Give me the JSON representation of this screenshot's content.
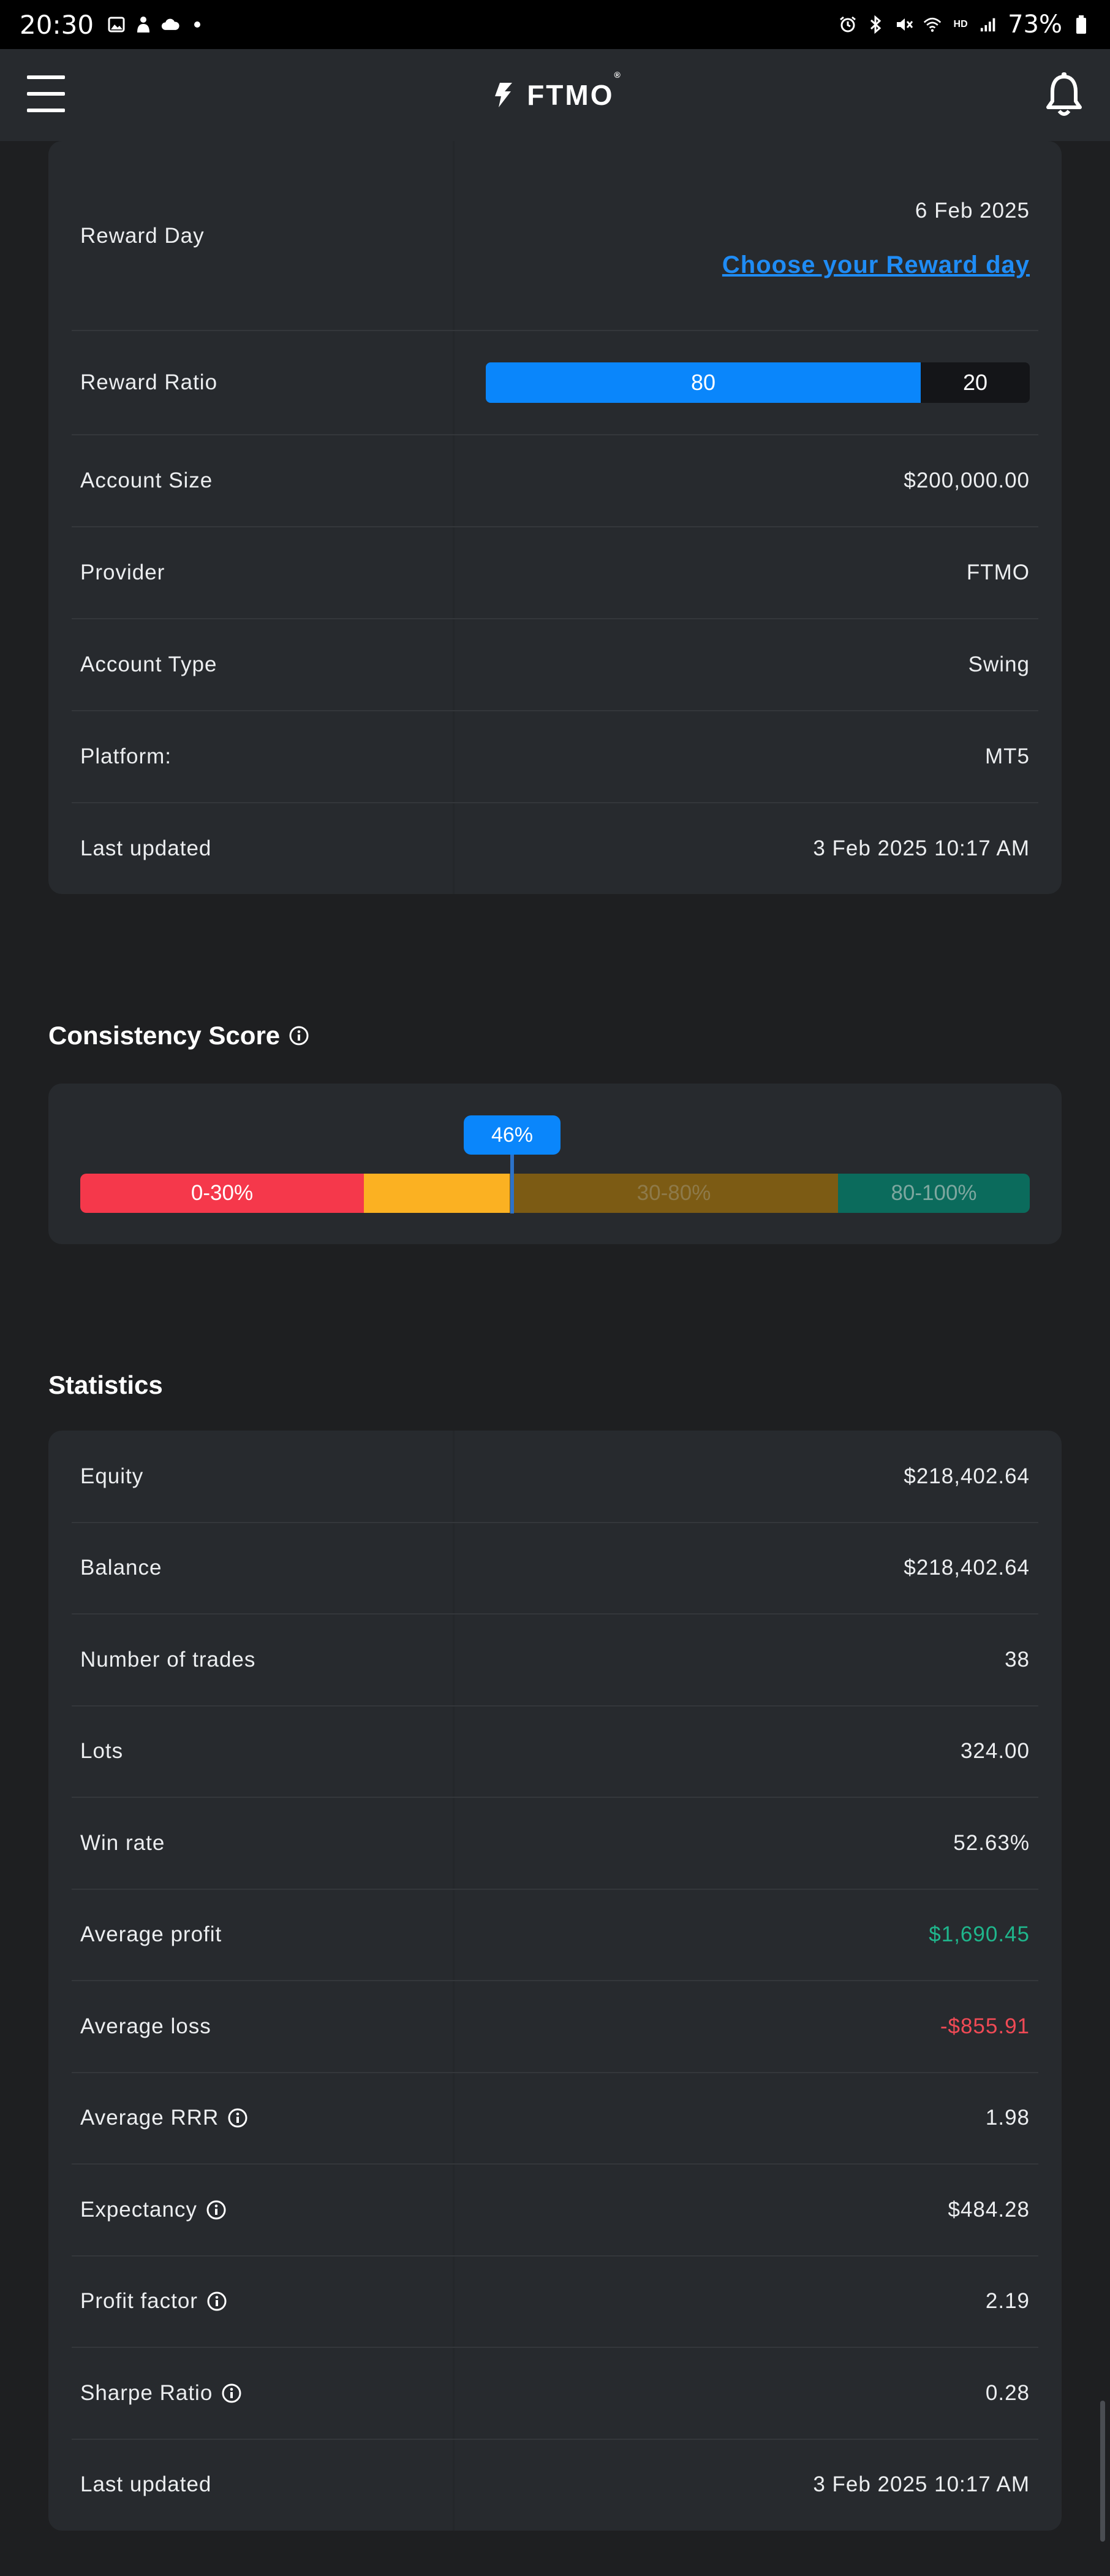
{
  "status_bar": {
    "time": "20:30",
    "battery": "73%"
  },
  "header": {
    "logo_text": "FTMO",
    "logo_mark": "®"
  },
  "account": {
    "reward_day_label": "Reward Day",
    "reward_day_value": "6 Feb 2025",
    "reward_day_link": "Choose your Reward day",
    "reward_ratio_label": "Reward Ratio",
    "reward_ratio_trader": "80",
    "reward_ratio_ftmo": "20",
    "rows": [
      {
        "label": "Account Size",
        "value": "$200,000.00"
      },
      {
        "label": "Provider",
        "value": "FTMO"
      },
      {
        "label": "Account Type",
        "value": "Swing"
      },
      {
        "label": "Platform:",
        "value": "MT5"
      },
      {
        "label": "Last updated",
        "value": "3 Feb 2025 10:17 AM"
      }
    ]
  },
  "consistency": {
    "title": "Consistency Score",
    "score": "46%",
    "score_fraction": 0.46,
    "segments": [
      "0-30%",
      "",
      "30-80%",
      "80-100%"
    ]
  },
  "statistics": {
    "title": "Statistics",
    "rows": [
      {
        "label": "Equity",
        "value": "$218,402.64",
        "info": false,
        "tone": "normal"
      },
      {
        "label": "Balance",
        "value": "$218,402.64",
        "info": false,
        "tone": "normal"
      },
      {
        "label": "Number of trades",
        "value": "38",
        "info": false,
        "tone": "normal"
      },
      {
        "label": "Lots",
        "value": "324.00",
        "info": false,
        "tone": "normal"
      },
      {
        "label": "Win rate",
        "value": "52.63%",
        "info": false,
        "tone": "normal"
      },
      {
        "label": "Average profit",
        "value": "$1,690.45",
        "info": false,
        "tone": "green"
      },
      {
        "label": "Average loss",
        "value": "-$855.91",
        "info": false,
        "tone": "red"
      },
      {
        "label": "Average RRR",
        "value": "1.98",
        "info": true,
        "tone": "normal"
      },
      {
        "label": "Expectancy",
        "value": "$484.28",
        "info": true,
        "tone": "normal"
      },
      {
        "label": "Profit factor",
        "value": "2.19",
        "info": true,
        "tone": "normal"
      },
      {
        "label": "Sharpe Ratio",
        "value": "0.28",
        "info": true,
        "tone": "normal"
      },
      {
        "label": "Last updated",
        "value": "3 Feb 2025 10:17 AM",
        "info": false,
        "tone": "normal"
      }
    ]
  },
  "colors": {
    "accent_blue": "#0a86fb",
    "profit_green": "#1fb68c",
    "loss_red": "#f04a55"
  }
}
